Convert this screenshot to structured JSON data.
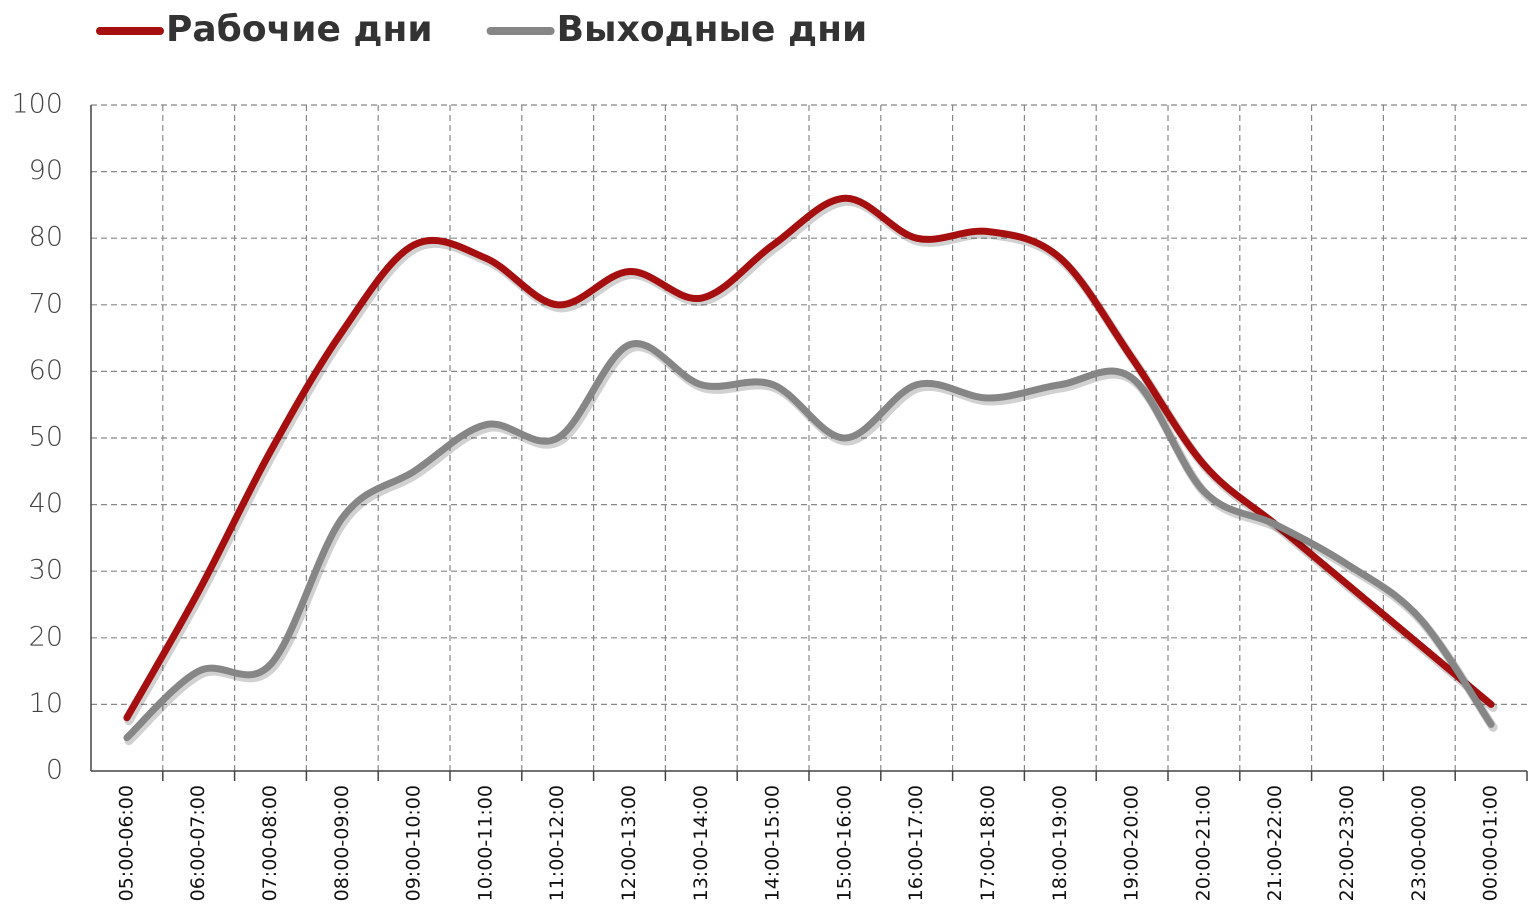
{
  "chart_data": {
    "type": "line",
    "categories": [
      "05:00-06:00",
      "06:00-07:00",
      "07:00-08:00",
      "08:00-09:00",
      "09:00-10:00",
      "10:00-11:00",
      "11:00-12:00",
      "12:00-13:00",
      "13:00-14:00",
      "14:00-15:00",
      "15:00-16:00",
      "16:00-17:00",
      "17:00-18:00",
      "18:00-19:00",
      "19:00-20:00",
      "20:00-21:00",
      "21:00-22:00",
      "22:00-23:00",
      "23:00-00:00",
      "00:00-01:00"
    ],
    "series": [
      {
        "name": "Рабочие дни",
        "color": "#a50f0f",
        "values": [
          8,
          27,
          48,
          66,
          79,
          77,
          70,
          75,
          71,
          79,
          86,
          80,
          81,
          77,
          62,
          46,
          37,
          28,
          19,
          10
        ]
      },
      {
        "name": "Выходные дни",
        "color": "#868686",
        "values": [
          5,
          15,
          16,
          38,
          45,
          52,
          50,
          64,
          58,
          58,
          50,
          58,
          56,
          58,
          59,
          42,
          37,
          31,
          23,
          7
        ]
      }
    ],
    "ylim": [
      0,
      100
    ],
    "yticks": [
      0,
      10,
      20,
      30,
      40,
      50,
      60,
      70,
      80,
      90,
      100
    ],
    "grid": true,
    "smooth": true,
    "legend": "top"
  }
}
